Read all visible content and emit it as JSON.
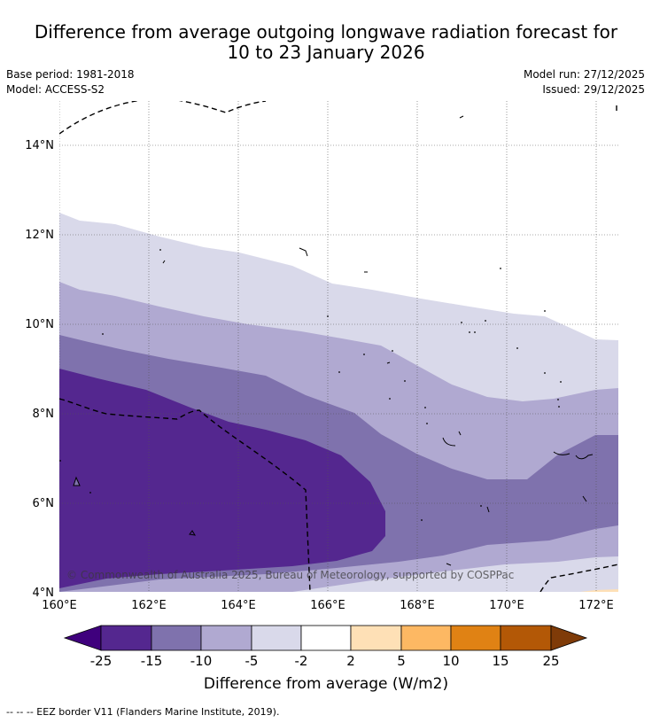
{
  "title": {
    "line1": "Difference from average outgoing longwave radiation forecast for",
    "line2": "10 to 23 January 2026"
  },
  "meta": {
    "base_period": "Base period: 1981-2018",
    "model": "Model: ACCESS-S2",
    "model_run": "Model run: 27/12/2025",
    "issued": "Issued: 29/12/2025"
  },
  "axes": {
    "lat_labels": [
      "14°N",
      "12°N",
      "10°N",
      "8°N",
      "6°N",
      "4°N"
    ],
    "lon_labels": [
      "160°E",
      "162°E",
      "164°E",
      "166°E",
      "168°E",
      "170°E",
      "172°E"
    ]
  },
  "copyright": "© Commonwealth of Australia 2025, Bureau of Meteorology, supported by COSPPac",
  "colorbar": {
    "ticks": [
      "-25",
      "-15",
      "-10",
      "-5",
      "-2",
      "2",
      "5",
      "10",
      "15",
      "25"
    ],
    "label": "Difference from average (W/m2)",
    "colors": {
      "below_min": "#3f007d",
      "c1": "#54278f",
      "c2": "#7f72ad",
      "c3": "#b0a9d1",
      "c4": "#d9d9ea",
      "c5": "#ffffff",
      "c6": "#fee0b6",
      "c7": "#fdb863",
      "c8": "#e08214",
      "c9": "#b35806",
      "above_max": "#7f3b08"
    }
  },
  "footer": "--  --  -- EEZ border V11 (Flanders Marine Institute, 2019)."
}
